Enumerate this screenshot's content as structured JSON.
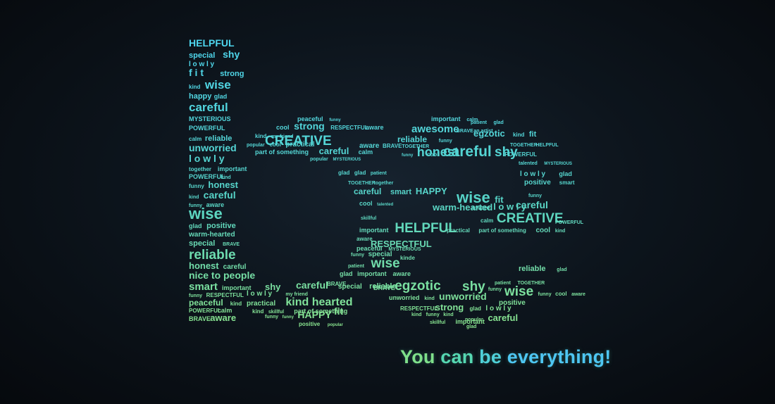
{
  "colors": {
    "bg_center": "#16222e",
    "bg_edge": "#06090d",
    "top_cyan": "#4dd6f0",
    "bottom_green": "#8be58c"
  },
  "tagline": {
    "w1": "You",
    "w2": "can",
    "w3": "be",
    "w4": "everything!"
  },
  "letter_b": [
    {
      "t": "HELPFUL",
      "s": 14
    },
    {
      "t": "special",
      "s": 11
    },
    {
      "t": "shy",
      "s": 14
    },
    {
      "t": "l o w l y",
      "s": 10
    },
    {
      "t": "f i t",
      "s": 14
    },
    {
      "t": "strong",
      "s": 11
    },
    {
      "t": "kind",
      "s": 8
    },
    {
      "t": "wise",
      "s": 17
    },
    {
      "t": "happy",
      "s": 11
    },
    {
      "t": "glad",
      "s": 9
    },
    {
      "t": "careful",
      "s": 17
    },
    {
      "t": "MYSTERIOUS",
      "s": 9
    },
    {
      "t": "POWERFUL",
      "s": 9
    },
    {
      "t": "calm",
      "s": 8
    },
    {
      "t": "reliable",
      "s": 11
    },
    {
      "t": "unworried",
      "s": 14
    },
    {
      "t": "l o w l y",
      "s": 14
    },
    {
      "t": "together",
      "s": 8
    },
    {
      "t": "important",
      "s": 9
    },
    {
      "t": "POWERFUL",
      "s": 9
    },
    {
      "t": "kind",
      "s": 7
    },
    {
      "t": "funny",
      "s": 8
    },
    {
      "t": "honest",
      "s": 13
    },
    {
      "t": "kind",
      "s": 7
    },
    {
      "t": "careful",
      "s": 14
    },
    {
      "t": "funny",
      "s": 7
    },
    {
      "t": "aware",
      "s": 9
    },
    {
      "t": "wise",
      "s": 22
    },
    {
      "t": "glad",
      "s": 9
    },
    {
      "t": "positive",
      "s": 11
    },
    {
      "t": "warm-hearted",
      "s": 10
    },
    {
      "t": "special",
      "s": 11
    },
    {
      "t": "BRAVE",
      "s": 7
    },
    {
      "t": "reliable",
      "s": 19
    },
    {
      "t": "honest",
      "s": 13
    },
    {
      "t": "careful",
      "s": 10
    },
    {
      "t": "nice to people",
      "s": 14
    },
    {
      "t": "smart",
      "s": 15
    },
    {
      "t": "important",
      "s": 9
    },
    {
      "t": "funny",
      "s": 7
    },
    {
      "t": "RESPECTFUL",
      "s": 8
    },
    {
      "t": "peaceful",
      "s": 12
    },
    {
      "t": "kind",
      "s": 8
    },
    {
      "t": "POWERFUL",
      "s": 8
    },
    {
      "t": "calm",
      "s": 9
    },
    {
      "t": "BRAVE",
      "s": 9
    },
    {
      "t": "aware",
      "s": 13
    }
  ],
  "letter_b_bowl": [
    {
      "t": "peaceful",
      "s": 9
    },
    {
      "t": "funny",
      "s": 6
    },
    {
      "t": "cool",
      "s": 9
    },
    {
      "t": "strong",
      "s": 14
    },
    {
      "t": "RESPECTFUL",
      "s": 8
    },
    {
      "t": "aware",
      "s": 9
    },
    {
      "t": "kind",
      "s": 8
    },
    {
      "t": "my friend",
      "s": 7
    },
    {
      "t": "CREATIVE",
      "s": 19
    },
    {
      "t": "popular",
      "s": 7
    },
    {
      "t": "cool",
      "s": 8
    },
    {
      "t": "practical",
      "s": 10
    },
    {
      "t": "part of something",
      "s": 9
    },
    {
      "t": "careful",
      "s": 13
    },
    {
      "t": "calm",
      "s": 9
    },
    {
      "t": "aware",
      "s": 10
    },
    {
      "t": "BRAVE",
      "s": 8
    },
    {
      "t": "TOGETHER",
      "s": 7
    },
    {
      "t": "popular",
      "s": 7
    },
    {
      "t": "MYSTERIOUS",
      "s": 6
    },
    {
      "t": "funny",
      "s": 6
    },
    {
      "t": "honest",
      "s": 18
    },
    {
      "t": "glad",
      "s": 8
    },
    {
      "t": "glad",
      "s": 8
    },
    {
      "t": "patient",
      "s": 7
    },
    {
      "t": "TOGETHER",
      "s": 7
    },
    {
      "t": "together",
      "s": 7
    },
    {
      "t": "careful",
      "s": 12
    },
    {
      "t": "smart",
      "s": 11
    },
    {
      "t": "HAPPY",
      "s": 13
    },
    {
      "t": "cool",
      "s": 9
    },
    {
      "t": "talented",
      "s": 6
    },
    {
      "t": "warm-hearted",
      "s": 13
    },
    {
      "t": "skillful",
      "s": 7
    },
    {
      "t": "important",
      "s": 9
    },
    {
      "t": "HELPFUL",
      "s": 19
    },
    {
      "t": "aware",
      "s": 8
    },
    {
      "t": "RESPECTFUL",
      "s": 13
    },
    {
      "t": "peaceful",
      "s": 9
    },
    {
      "t": "MYSTERIOUS",
      "s": 7
    },
    {
      "t": "funny",
      "s": 7
    },
    {
      "t": "special",
      "s": 10
    },
    {
      "t": "kinde",
      "s": 8
    },
    {
      "t": "patient",
      "s": 7
    },
    {
      "t": "wise",
      "s": 19
    },
    {
      "t": "glad",
      "s": 9
    },
    {
      "t": "important",
      "s": 9
    },
    {
      "t": "aware",
      "s": 9
    },
    {
      "t": "BRAVE",
      "s": 8
    },
    {
      "t": "careful",
      "s": 14
    },
    {
      "t": "special",
      "s": 10
    },
    {
      "t": "reliable",
      "s": 11
    },
    {
      "t": "shy",
      "s": 13
    },
    {
      "t": "l o w l y",
      "s": 10
    },
    {
      "t": "my friend",
      "s": 7
    },
    {
      "t": "practical",
      "s": 10
    },
    {
      "t": "kind hearted",
      "s": 16
    },
    {
      "t": "kind",
      "s": 8
    },
    {
      "t": "skillful",
      "s": 7
    },
    {
      "t": "part of something",
      "s": 9
    },
    {
      "t": "fit",
      "s": 14
    },
    {
      "t": "funny",
      "s": 7
    },
    {
      "t": "funny",
      "s": 6
    },
    {
      "t": "HAPPY",
      "s": 14
    },
    {
      "t": "positive",
      "s": 8
    },
    {
      "t": "popular",
      "s": 6
    },
    {
      "t": "glad",
      "s": 8
    }
  ],
  "letter_e": [
    {
      "t": "important",
      "s": 9
    },
    {
      "t": "calm",
      "s": 7
    },
    {
      "t": "patient",
      "s": 7
    },
    {
      "t": "glad",
      "s": 7
    },
    {
      "t": "awesome",
      "s": 15
    },
    {
      "t": "BRAVE",
      "s": 7
    },
    {
      "t": "an artist",
      "s": 7
    },
    {
      "t": "egzotic",
      "s": 13
    },
    {
      "t": "kind",
      "s": 8
    },
    {
      "t": "fit",
      "s": 11
    },
    {
      "t": "reliable",
      "s": 12
    },
    {
      "t": "funny",
      "s": 7
    },
    {
      "t": "TOGETHER",
      "s": 7
    },
    {
      "t": "HELPFUL",
      "s": 7
    },
    {
      "t": "cool",
      "s": 8
    },
    {
      "t": "careful",
      "s": 21
    },
    {
      "t": "POWERFUL",
      "s": 8
    },
    {
      "t": "shy",
      "s": 19
    },
    {
      "t": "talented",
      "s": 7
    },
    {
      "t": "MYSTERIOUS",
      "s": 6
    },
    {
      "t": "l o w l y",
      "s": 10
    },
    {
      "t": "glad",
      "s": 9
    },
    {
      "t": "positive",
      "s": 10
    },
    {
      "t": "smart",
      "s": 8
    },
    {
      "t": "funny",
      "s": 7
    },
    {
      "t": "wise",
      "s": 22
    },
    {
      "t": "fit",
      "s": 13
    },
    {
      "t": "aware",
      "s": 9
    },
    {
      "t": "l o w l y",
      "s": 13
    },
    {
      "t": "careful",
      "s": 14
    },
    {
      "t": "calm",
      "s": 8
    },
    {
      "t": "CREATIVE",
      "s": 19
    },
    {
      "t": "POWERFUL",
      "s": 7
    },
    {
      "t": "practical",
      "s": 8
    },
    {
      "t": "part of something",
      "s": 8
    },
    {
      "t": "cool",
      "s": 10
    },
    {
      "t": "kind",
      "s": 7
    },
    {
      "t": "BRAVE",
      "s": 9
    },
    {
      "t": "egzotic",
      "s": 19
    },
    {
      "t": "reliable",
      "s": 11
    },
    {
      "t": "glad",
      "s": 7
    },
    {
      "t": "unworried",
      "s": 9
    },
    {
      "t": "kind",
      "s": 7
    },
    {
      "t": "unworried",
      "s": 14
    },
    {
      "t": "shy",
      "s": 19
    },
    {
      "t": "funny",
      "s": 7
    },
    {
      "t": "patient",
      "s": 7
    },
    {
      "t": "TOGETHER",
      "s": 7
    },
    {
      "t": "wise",
      "s": 19
    },
    {
      "t": "funny",
      "s": 7
    },
    {
      "t": "cool",
      "s": 8
    },
    {
      "t": "aware",
      "s": 7
    },
    {
      "t": "positive",
      "s": 10
    },
    {
      "t": "RESPECTFUL",
      "s": 8
    },
    {
      "t": "strong",
      "s": 13
    },
    {
      "t": "glad",
      "s": 8
    },
    {
      "t": "l o w l y",
      "s": 10
    },
    {
      "t": "kind",
      "s": 7
    },
    {
      "t": "funny",
      "s": 7
    },
    {
      "t": "kind",
      "s": 7
    },
    {
      "t": "popular",
      "s": 7
    },
    {
      "t": "careful",
      "s": 13
    },
    {
      "t": "skillful",
      "s": 7
    },
    {
      "t": "important",
      "s": 9
    },
    {
      "t": "glad",
      "s": 7
    },
    {
      "t": "BRAVE",
      "s": 7
    }
  ]
}
